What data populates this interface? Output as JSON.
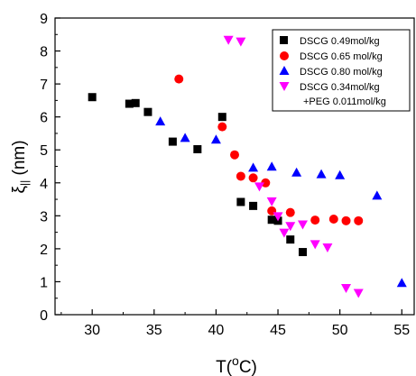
{
  "chart_data": {
    "type": "scatter",
    "xlabel": "T(",
    "xlabel_sup": "o",
    "xlabel_end": "C)",
    "ylabel": "ξ",
    "ylabel_sub": "||",
    "ylabel_end": " (nm)",
    "xlim": [
      27,
      56
    ],
    "ylim": [
      0,
      9
    ],
    "x_ticks": [
      30,
      35,
      40,
      45,
      50,
      55
    ],
    "y_ticks": [
      0,
      1,
      2,
      3,
      4,
      5,
      6,
      7,
      8,
      9
    ],
    "grid": false,
    "legend_position": "top-right",
    "series": [
      {
        "name": "DSCG 0.49mol/kg",
        "marker": "square",
        "color": "#000000",
        "points": [
          [
            30,
            6.6
          ],
          [
            33,
            6.4
          ],
          [
            33.5,
            6.42
          ],
          [
            34.5,
            6.15
          ],
          [
            36.5,
            5.25
          ],
          [
            38.5,
            5.02
          ],
          [
            40.5,
            6.0
          ],
          [
            42,
            3.42
          ],
          [
            43,
            3.3
          ],
          [
            44.5,
            2.88
          ],
          [
            45,
            2.85
          ],
          [
            46,
            2.28
          ],
          [
            47,
            1.9
          ]
        ]
      },
      {
        "name": "DSCG 0.65 mol/kg",
        "marker": "circle",
        "color": "#ff0000",
        "points": [
          [
            37,
            7.15
          ],
          [
            40.5,
            5.7
          ],
          [
            41.5,
            4.85
          ],
          [
            42,
            4.2
          ],
          [
            43,
            4.15
          ],
          [
            44,
            4.0
          ],
          [
            44.5,
            3.15
          ],
          [
            46,
            3.1
          ],
          [
            48,
            2.87
          ],
          [
            49.5,
            2.9
          ],
          [
            50.5,
            2.85
          ],
          [
            51.5,
            2.85
          ]
        ]
      },
      {
        "name": "DSCG 0.80 mol/kg",
        "marker": "triangle-up",
        "color": "#0000ff",
        "points": [
          [
            35.5,
            5.85
          ],
          [
            37.5,
            5.35
          ],
          [
            40,
            5.3
          ],
          [
            43,
            4.45
          ],
          [
            44.5,
            4.48
          ],
          [
            46.5,
            4.3
          ],
          [
            48.5,
            4.25
          ],
          [
            50,
            4.22
          ],
          [
            53,
            3.6
          ],
          [
            55,
            0.95
          ]
        ]
      },
      {
        "name": "DSCG 0.34mol/kg",
        "name_line2": "+PEG 0.011mol/kg",
        "marker": "triangle-down",
        "color": "#ff00ff",
        "points": [
          [
            41,
            8.35
          ],
          [
            42,
            8.3
          ],
          [
            43.5,
            3.9
          ],
          [
            44.5,
            3.45
          ],
          [
            45,
            3.0
          ],
          [
            45.5,
            2.5
          ],
          [
            46,
            2.7
          ],
          [
            47,
            2.75
          ],
          [
            48,
            2.15
          ],
          [
            49,
            2.05
          ],
          [
            50.5,
            0.82
          ],
          [
            51.5,
            0.67
          ]
        ]
      }
    ]
  }
}
